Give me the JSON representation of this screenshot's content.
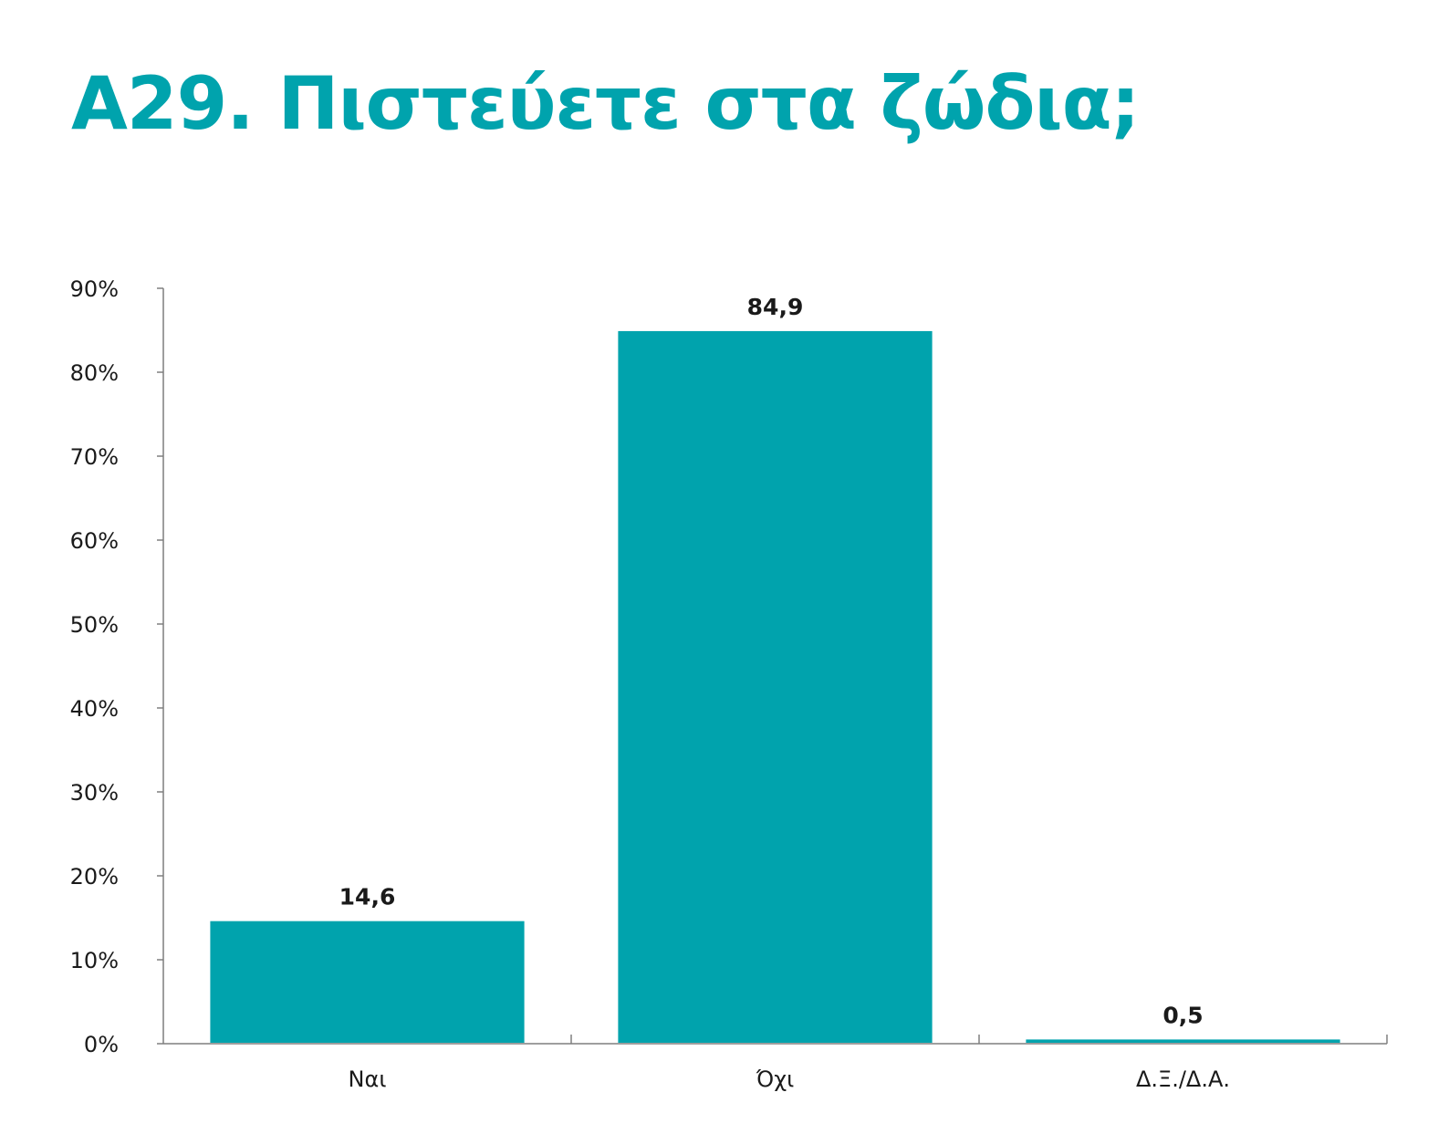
{
  "title": "Α29. Πιστεύετε στα ζώδια;",
  "colors": {
    "accent": "#00a3ad",
    "axis": "#7f7f7f",
    "text": "#1a1a1a"
  },
  "chart_data": {
    "type": "bar",
    "categories": [
      "Ναι",
      "Όχι",
      "Δ.Ξ./Δ.Α."
    ],
    "values": [
      14.6,
      84.9,
      0.5
    ],
    "value_labels": [
      "14,6",
      "84,9",
      "0,5"
    ],
    "ylim": [
      0,
      90
    ],
    "yticks": [
      0,
      10,
      20,
      30,
      40,
      50,
      60,
      70,
      80,
      90
    ],
    "ytick_labels": [
      "0%",
      "10%",
      "20%",
      "30%",
      "40%",
      "50%",
      "60%",
      "70%",
      "80%",
      "90%"
    ],
    "xlabel": "",
    "ylabel": "",
    "grid": false,
    "legend": "none",
    "bar_color": "#00a3ad"
  }
}
